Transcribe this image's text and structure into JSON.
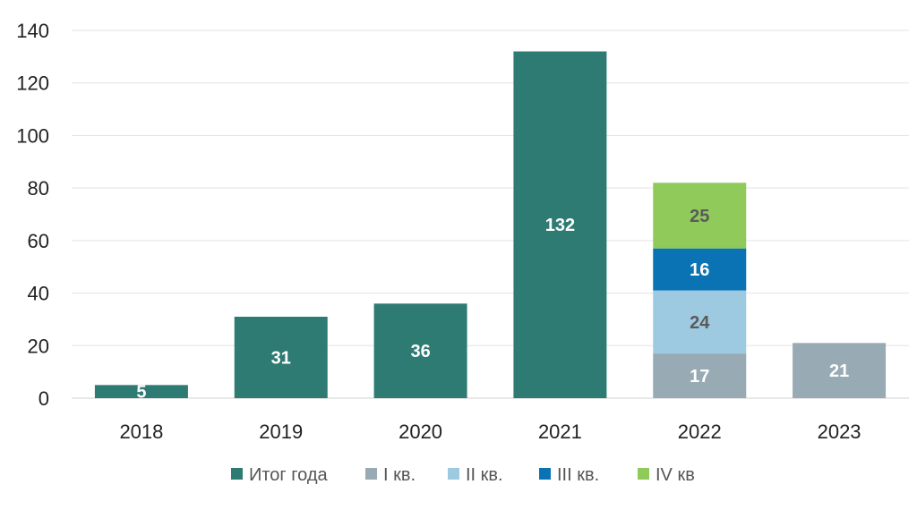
{
  "chart_data": {
    "type": "bar",
    "stacked": true,
    "categories": [
      "2018",
      "2019",
      "2020",
      "2021",
      "2022",
      "2023"
    ],
    "ylim": [
      0,
      140
    ],
    "yticks": [
      0,
      20,
      40,
      60,
      80,
      100,
      120,
      140
    ],
    "grid": true,
    "legend_position": "bottom",
    "series": [
      {
        "name": "Итог года",
        "color": "#2e7b73",
        "label_color": "#ffffff",
        "values": [
          5,
          31,
          36,
          132,
          null,
          null
        ]
      },
      {
        "name": "I кв.",
        "color": "#98aab3",
        "label_color": "#ffffff",
        "values": [
          null,
          null,
          null,
          null,
          17,
          21
        ]
      },
      {
        "name": "II кв.",
        "color": "#9dcae0",
        "label_color": "#5a5a5a",
        "values": [
          null,
          null,
          null,
          null,
          24,
          null
        ]
      },
      {
        "name": "III кв.",
        "color": "#0a73b3",
        "label_color": "#ffffff",
        "values": [
          null,
          null,
          null,
          null,
          16,
          null
        ]
      },
      {
        "name": "IV кв",
        "color": "#8fca5a",
        "label_color": "#5a5a5a",
        "values": [
          null,
          null,
          null,
          null,
          25,
          null
        ]
      }
    ]
  }
}
